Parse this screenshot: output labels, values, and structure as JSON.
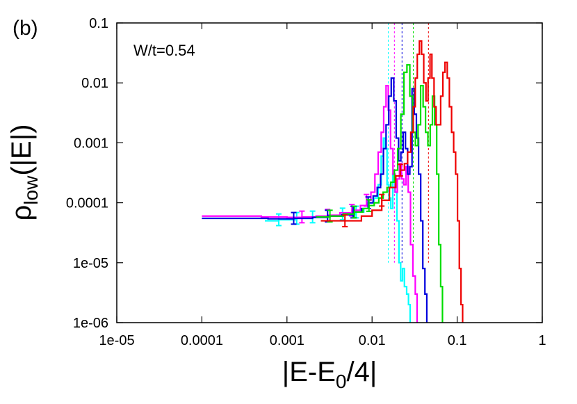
{
  "chart_data": {
    "type": "line",
    "panel_label": "(b)",
    "annotation": "W/t=0.54",
    "x_scale": "log",
    "y_scale": "log",
    "xlim": [
      1e-05,
      1
    ],
    "ylim": [
      1e-06,
      0.1
    ],
    "x_ticks": [
      {
        "value": 1e-05,
        "label": "1e-05"
      },
      {
        "value": 0.0001,
        "label": "0.0001"
      },
      {
        "value": 0.001,
        "label": "0.001"
      },
      {
        "value": 0.01,
        "label": "0.01"
      },
      {
        "value": 0.1,
        "label": "0.1"
      },
      {
        "value": 1,
        "label": "1"
      }
    ],
    "y_ticks": [
      {
        "value": 1e-06,
        "label": "1e-06"
      },
      {
        "value": 1e-05,
        "label": "1e-05"
      },
      {
        "value": 0.0001,
        "label": "0.0001"
      },
      {
        "value": 0.001,
        "label": "0.001"
      },
      {
        "value": 0.01,
        "label": "0.01"
      },
      {
        "value": 0.1,
        "label": "0.1"
      }
    ],
    "ylabel": {
      "main": "ρ",
      "sub": "low",
      "rest": "(|E|)"
    },
    "xlabel": {
      "main": "|E-E",
      "sub": "0",
      "rest": "/4|"
    },
    "grid": false,
    "legend": "none",
    "series": [
      {
        "color": "#00ffff",
        "step_x": [
          0.00055,
          0.0008,
          0.0013,
          0.002,
          0.003,
          0.0045,
          0.0065,
          0.008,
          0.009,
          0.0105,
          0.0118,
          0.0128,
          0.0136,
          0.0143,
          0.015,
          0.0158,
          0.0166,
          0.0175,
          0.0185,
          0.0196,
          0.0207,
          0.0217,
          0.0228,
          0.024,
          0.0255,
          0.0268,
          0.028
        ],
        "step_y": [
          5e-05,
          5.2e-05,
          5.5e-05,
          5.8e-05,
          6e-05,
          6.5e-05,
          7e-05,
          8e-05,
          0.0001,
          0.00012,
          0.0002,
          0.0006,
          0.0012,
          0.0008,
          0.0002,
          0.00012,
          8e-05,
          0.0003,
          0.00015,
          5e-05,
          1e-05,
          5e-06,
          8e-06,
          4e-06,
          3e-06,
          2e-06,
          1e-06
        ],
        "err_x": [
          0.0008,
          0.0013,
          0.002,
          0.0045,
          0.0065
        ],
        "err_y": [
          5.2e-05,
          5.5e-05,
          5.8e-05,
          6.5e-05,
          7e-05
        ],
        "vline_x": 0.0155
      },
      {
        "color": "#ff00ff",
        "step_x": [
          0.0001,
          0.0005,
          0.001,
          0.0015,
          0.0022,
          0.003,
          0.0042,
          0.0058,
          0.0073,
          0.0086,
          0.0097,
          0.0108,
          0.0118,
          0.0128,
          0.0137,
          0.0146,
          0.0155,
          0.0165,
          0.0176,
          0.0187,
          0.0198,
          0.021,
          0.0222,
          0.0236,
          0.0251,
          0.0266,
          0.0283,
          0.0302,
          0.0322,
          0.0338
        ],
        "step_y": [
          6e-05,
          5.8e-05,
          5.7e-05,
          5.8e-05,
          6e-05,
          6.2e-05,
          6.8e-05,
          7.5e-05,
          9e-05,
          0.00011,
          0.00015,
          0.0003,
          0.0007,
          0.0015,
          0.004,
          0.009,
          0.0035,
          0.0008,
          0.0003,
          0.00015,
          0.00025,
          0.00045,
          0.00025,
          0.0002,
          0.0004,
          0.00015,
          2e-05,
          6e-06,
          3e-06,
          1e-06
        ],
        "err_x": [
          0.0015,
          0.003,
          0.0058,
          0.0086
        ],
        "err_y": [
          5.8e-05,
          6.2e-05,
          7.5e-05,
          0.00011
        ],
        "vline_x": 0.0183
      },
      {
        "color": "#0000dd",
        "step_x": [
          0.0001,
          0.0006,
          0.0012,
          0.002,
          0.003,
          0.0044,
          0.006,
          0.0075,
          0.009,
          0.0103,
          0.0115,
          0.0126,
          0.0136,
          0.0146,
          0.0157,
          0.0168,
          0.018,
          0.0192,
          0.0205,
          0.0218,
          0.0232,
          0.0247,
          0.0262,
          0.0278,
          0.0295,
          0.0313,
          0.0332,
          0.0352,
          0.0373,
          0.0395,
          0.0418,
          0.044
        ],
        "step_y": [
          5.5e-05,
          5.4e-05,
          5.5e-05,
          5.7e-05,
          6e-05,
          6.3e-05,
          7e-05,
          8e-05,
          0.0001,
          0.00013,
          0.00018,
          0.0003,
          0.0008,
          0.002,
          0.006,
          0.012,
          0.005,
          0.0012,
          0.0005,
          0.0007,
          0.0015,
          0.0008,
          0.0003,
          0.0004,
          0.008,
          0.003,
          0.0012,
          0.0003,
          5e-05,
          8e-06,
          3e-06,
          1e-06
        ],
        "err_x": [
          0.0012,
          0.003,
          0.006,
          0.009
        ],
        "err_y": [
          5.5e-05,
          6e-05,
          7e-05,
          0.0001
        ],
        "vline_x": 0.0225
      },
      {
        "color": "#00dd00",
        "step_x": [
          0.0022,
          0.0032,
          0.0046,
          0.0062,
          0.0078,
          0.0092,
          0.0106,
          0.012,
          0.0135,
          0.015,
          0.0166,
          0.0183,
          0.02,
          0.0218,
          0.0237,
          0.0257,
          0.0278,
          0.03,
          0.0323,
          0.0347,
          0.0372,
          0.0398,
          0.0425,
          0.0453,
          0.0482,
          0.0512,
          0.0543,
          0.0575,
          0.0608,
          0.064,
          0.0672
        ],
        "step_y": [
          5.8e-05,
          6e-05,
          6.5e-05,
          7e-05,
          8e-05,
          9e-05,
          0.0001,
          0.00012,
          0.00015,
          0.00018,
          0.00022,
          0.00035,
          0.0008,
          0.003,
          0.015,
          0.02,
          0.006,
          0.0015,
          0.0009,
          0.002,
          0.009,
          0.004,
          0.0015,
          0.0009,
          0.002,
          0.006,
          0.002,
          0.0003,
          2e-05,
          4e-06,
          1e-06
        ],
        "err_x": [
          0.0032,
          0.0062,
          0.0092
        ],
        "err_y": [
          6e-05,
          7e-05,
          9e-05
        ],
        "vline_x": 0.0305
      },
      {
        "color": "#ee0000",
        "step_x": [
          0.0025,
          0.0048,
          0.0075,
          0.01,
          0.013,
          0.016,
          0.019,
          0.0215,
          0.024,
          0.0262,
          0.0285,
          0.0305,
          0.0322,
          0.034,
          0.036,
          0.0382,
          0.0405,
          0.043,
          0.0455,
          0.048,
          0.0505,
          0.0535,
          0.0565,
          0.06,
          0.064,
          0.068,
          0.072,
          0.0765,
          0.081,
          0.086,
          0.091,
          0.096,
          0.101,
          0.106,
          0.111,
          0.116
        ],
        "step_y": [
          5e-05,
          5e-05,
          6e-05,
          7.5e-05,
          0.00011,
          0.00018,
          0.00028,
          0.00035,
          0.00045,
          0.0007,
          0.0015,
          0.004,
          0.012,
          0.03,
          0.05,
          0.03,
          0.01,
          0.005,
          0.012,
          0.03,
          0.012,
          0.004,
          0.002,
          0.002,
          0.006,
          0.015,
          0.022,
          0.012,
          0.004,
          0.0015,
          0.0007,
          0.0003,
          5e-05,
          8e-06,
          2e-06,
          1e-06
        ],
        "err_x": [
          0.0048,
          0.013,
          0.0215
        ],
        "err_y": [
          5e-05,
          0.00011,
          0.00035
        ],
        "vline_x": 0.046
      }
    ]
  }
}
